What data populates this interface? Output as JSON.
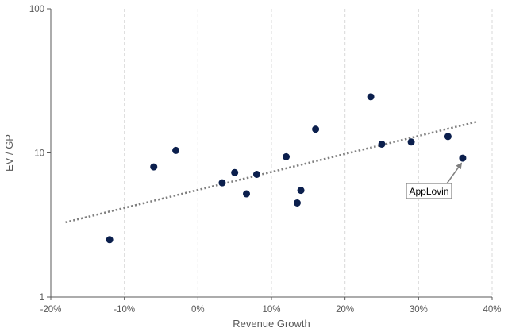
{
  "chart_data": {
    "type": "scatter",
    "title": "",
    "xlabel": "Revenue Growth",
    "ylabel": "EV / GP",
    "x_format": "percent",
    "xlim": [
      -0.2,
      0.4
    ],
    "x_ticks": [
      -0.2,
      -0.1,
      0,
      0.1,
      0.2,
      0.3,
      0.4
    ],
    "x_tick_labels": [
      "-20%",
      "-10%",
      "0%",
      "10%",
      "20%",
      "30%",
      "40%"
    ],
    "y_scale": "log",
    "ylim": [
      1,
      100
    ],
    "y_ticks": [
      1,
      10,
      100
    ],
    "y_tick_labels": [
      "1",
      "10",
      "100"
    ],
    "grid": {
      "x": true,
      "y": false,
      "style": "dashed"
    },
    "marker_color": "#0b1f4d",
    "trendline": {
      "style": "dotted",
      "color": "#7f7f7f",
      "x": [
        -0.18,
        0.38
      ],
      "y": [
        3.3,
        16.5
      ]
    },
    "points": [
      {
        "x": -0.12,
        "y": 2.5
      },
      {
        "x": -0.06,
        "y": 8.0
      },
      {
        "x": -0.03,
        "y": 10.4
      },
      {
        "x": 0.033,
        "y": 6.2
      },
      {
        "x": 0.05,
        "y": 7.3
      },
      {
        "x": 0.066,
        "y": 5.2
      },
      {
        "x": 0.08,
        "y": 7.1
      },
      {
        "x": 0.12,
        "y": 9.4
      },
      {
        "x": 0.135,
        "y": 4.5
      },
      {
        "x": 0.14,
        "y": 5.5
      },
      {
        "x": 0.16,
        "y": 14.6
      },
      {
        "x": 0.235,
        "y": 24.5
      },
      {
        "x": 0.25,
        "y": 11.5
      },
      {
        "x": 0.29,
        "y": 11.9
      },
      {
        "x": 0.34,
        "y": 13.0
      },
      {
        "x": 0.36,
        "y": 9.2
      }
    ],
    "annotations": [
      {
        "text": "AppLovin",
        "target_x": 0.36,
        "target_y": 9.2
      }
    ]
  }
}
